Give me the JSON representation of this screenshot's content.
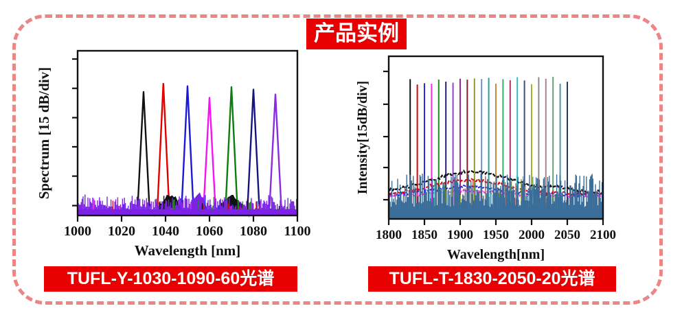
{
  "title": {
    "text": "产品实例"
  },
  "theme": {
    "accent_red": "#e80000",
    "border_dash_color": "#ec8585",
    "text_on_red": "#ffffff"
  },
  "figures": [
    {
      "caption": "TUFL-Y-1030-1090-60光谱"
    },
    {
      "caption": "TUFL-T-1830-2050-20光谱"
    }
  ],
  "chart_data": [
    {
      "type": "line",
      "title": "",
      "xlabel": "Wavelength [nm]",
      "ylabel": "Spectrum [15 dB/div]",
      "xlim": [
        1000,
        1100
      ],
      "xticks": [
        1000,
        1020,
        1040,
        1060,
        1080,
        1100
      ],
      "y_axis_note": "arbitrary intensity, 15 dB per division, 6 unlabeled ticks",
      "grid": false,
      "legend": "none",
      "peaks": [
        {
          "wavelength_nm": 1030,
          "color": "#111111",
          "rel_height": 0.75
        },
        {
          "wavelength_nm": 1039,
          "color": "#e00000",
          "rel_height": 0.8
        },
        {
          "wavelength_nm": 1050,
          "color": "#1a1ad6",
          "rel_height": 0.785
        },
        {
          "wavelength_nm": 1060,
          "color": "#f512f5",
          "rel_height": 0.715
        },
        {
          "wavelength_nm": 1070,
          "color": "#0e7c0e",
          "rel_height": 0.78
        },
        {
          "wavelength_nm": 1080,
          "color": "#15157d",
          "rel_height": 0.765
        },
        {
          "wavelength_nm": 1090,
          "color": "#8a2be2",
          "rel_height": 0.735
        }
      ],
      "noise_floor": {
        "color": "#7c22e8",
        "speck_colors": [
          "#111111",
          "#e00000",
          "#228b22",
          "#2a2ae0",
          "#ee30ee"
        ],
        "rel_top": 0.09,
        "bumps": [
          {
            "center": 1042,
            "half_width": 7,
            "rel_height": 0.125,
            "color": "#111111"
          },
          {
            "center": 1070,
            "half_width": 8,
            "rel_height": 0.115,
            "color": "#111111"
          },
          {
            "center": 1055,
            "half_width": 5,
            "rel_height": 0.135,
            "color": "#7c22e8"
          }
        ]
      }
    },
    {
      "type": "line",
      "title": "",
      "xlabel": "Wavelength[nm]",
      "ylabel": "Intensity[15dB/div]",
      "xlim": [
        1800,
        2100
      ],
      "xticks": [
        1800,
        1850,
        1900,
        1950,
        2000,
        2050,
        2100
      ],
      "y_axis_note": "arbitrary intensity, 15 dB per division, 5 unlabeled ticks",
      "grid": false,
      "legend": "none",
      "comb": {
        "start_nm": 1830,
        "end_nm": 2050,
        "step_nm": 10,
        "rel_height": 0.85,
        "colors": [
          "#111111",
          "#e00000",
          "#2a2ae0",
          "#ee30ee",
          "#228b22",
          "#20207a",
          "#8a44d8",
          "#952a95",
          "#7a2020",
          "#98982a",
          "#6d93c4",
          "#2a9d9d",
          "#c98f35",
          "#35b06a",
          "#b03070",
          "#35bdbd",
          "#46468f",
          "#a6b32a",
          "#8a8a8a",
          "#a98585",
          "#66a07a",
          "#4a93a8",
          "#273a5e"
        ]
      },
      "ase_humps": [
        {
          "color": "#111111",
          "base_rel": 0.165,
          "stroke": 2.2,
          "components": [
            {
              "center": 1916,
              "sigma": 55,
              "amp": 0.125
            },
            {
              "center": 2040,
              "sigma": 18,
              "amp": 0.02
            }
          ]
        },
        {
          "color": "#e00000",
          "base_rel": 0.155,
          "stroke": 2.0,
          "components": [
            {
              "center": 1912,
              "sigma": 50,
              "amp": 0.085
            }
          ]
        },
        {
          "color": "#2525d6",
          "base_rel": 0.148,
          "stroke": 1.8,
          "components": [
            {
              "center": 1910,
              "sigma": 47,
              "amp": 0.05
            }
          ]
        },
        {
          "color": "#ee30ee",
          "base_rel": 0.142,
          "stroke": 1.8,
          "components": [
            {
              "center": 1908,
              "sigma": 45,
              "amp": 0.03
            }
          ]
        }
      ],
      "noise_floor": {
        "color": "#3a6d99",
        "rel_top": 0.165,
        "streak_range_nm": [
          1858,
          2042
        ],
        "streak_colors": [
          "#9aa52a",
          "#6b8e23",
          "#7a4a4a",
          "#2a9d9d",
          "#45c3c3",
          "#a83a3a",
          "#5a7a3a",
          "#c0c06a"
        ]
      }
    }
  ]
}
